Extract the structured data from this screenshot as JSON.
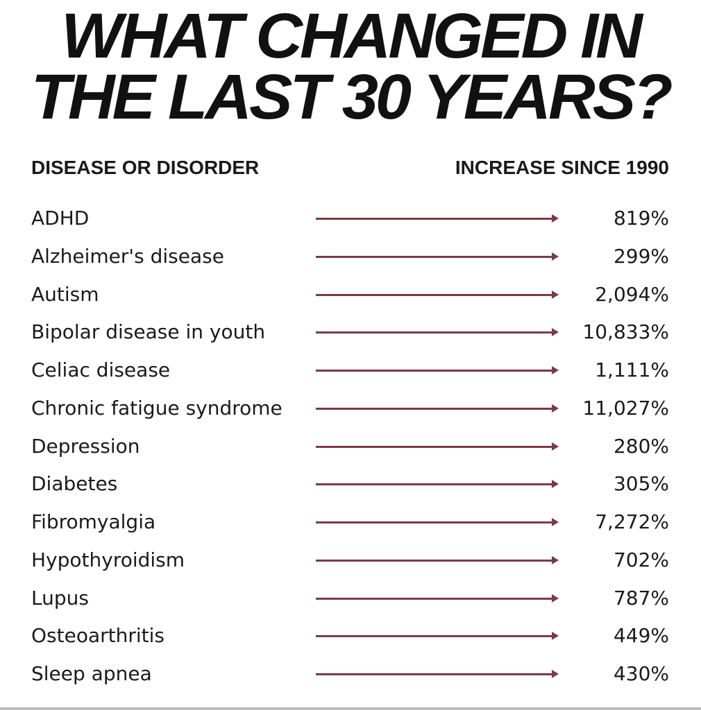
{
  "title": {
    "line1": "WHAT CHANGED IN",
    "line2": "THE LAST 30 YEARS?"
  },
  "headers": {
    "left": "DISEASE OR DISORDER",
    "right": "INCREASE SINCE 1990"
  },
  "arrow_color": "#7b3a46",
  "rows": [
    {
      "name": "ADHD",
      "value": "819%"
    },
    {
      "name": "Alzheimer's disease",
      "value": "299%"
    },
    {
      "name": "Autism",
      "value": "2,094%"
    },
    {
      "name": "Bipolar disease in youth",
      "value": "10,833%"
    },
    {
      "name": "Celiac disease",
      "value": "1,111%"
    },
    {
      "name": "Chronic fatigue syndrome",
      "value": "11,027%"
    },
    {
      "name": "Depression",
      "value": "280%"
    },
    {
      "name": "Diabetes",
      "value": "305%"
    },
    {
      "name": "Fibromyalgia",
      "value": "7,272%"
    },
    {
      "name": "Hypothyroidism",
      "value": "702%"
    },
    {
      "name": "Lupus",
      "value": "787%"
    },
    {
      "name": "Osteoarthritis",
      "value": "449%"
    },
    {
      "name": "Sleep apnea",
      "value": "430%"
    }
  ]
}
